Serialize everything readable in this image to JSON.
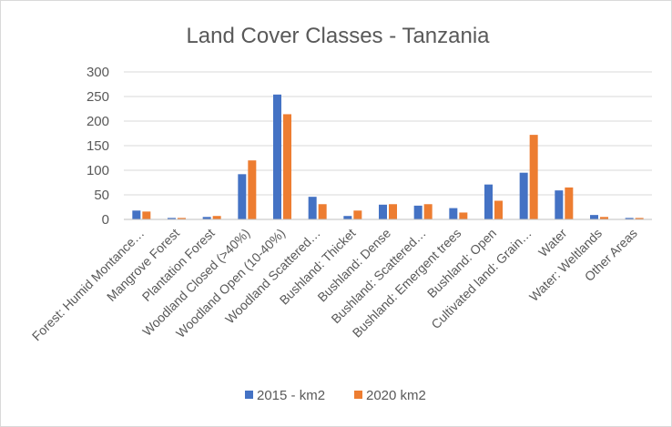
{
  "chart_data": {
    "type": "bar",
    "title": "Land Cover Classes - Tanzania",
    "xlabel": "",
    "ylabel": "",
    "ylim": [
      0,
      300
    ],
    "yticks": [
      "0",
      "50",
      "100",
      "150",
      "200",
      "250",
      "300"
    ],
    "grid": true,
    "legend_position": "bottom",
    "categories": [
      "Forest: Humid Montance…",
      "Mangrove Forest",
      "Plantation Forest",
      "Woodland Closed (>40%)",
      "Woodland Open (10-40%)",
      "Woodland Scattered…",
      "Bushland: Thicket",
      "Bushland: Dense",
      "Bushland: Scattered…",
      "Bushland: Emergent trees",
      "Bushland: Open",
      "Cultivated land: Grain…",
      "Water",
      "Water: Weltlands",
      "Other Areas"
    ],
    "series": [
      {
        "name": "2015 - km2",
        "color": "#4472c4",
        "values": [
          18,
          3,
          5,
          92,
          254,
          46,
          7,
          30,
          28,
          23,
          71,
          95,
          59,
          9,
          3
        ]
      },
      {
        "name": "2020 km2",
        "color": "#ed7d31",
        "values": [
          16,
          3,
          7,
          120,
          214,
          31,
          18,
          31,
          31,
          14,
          38,
          172,
          65,
          5,
          3
        ]
      }
    ]
  }
}
